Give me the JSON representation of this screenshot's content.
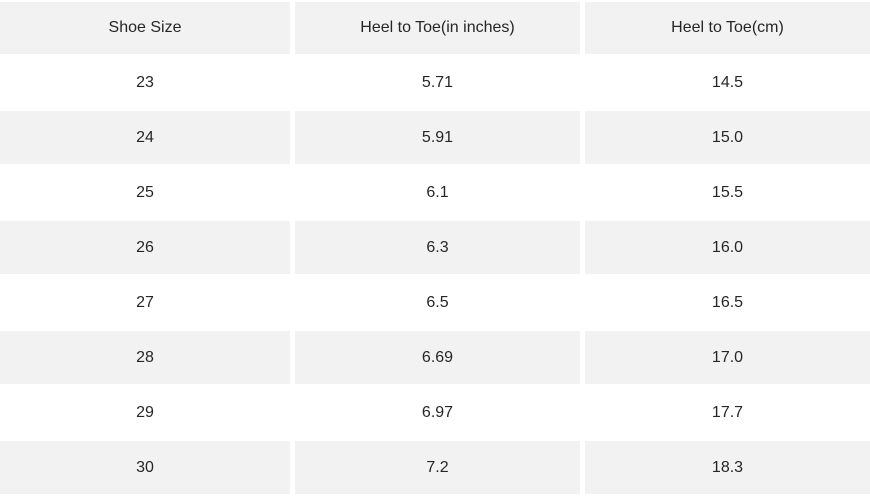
{
  "table": {
    "headers": [
      "Shoe Size",
      "Heel to Toe(in inches)",
      "Heel to Toe(cm)"
    ],
    "rows": [
      [
        "23",
        "5.71",
        "14.5"
      ],
      [
        "24",
        "5.91",
        "15.0"
      ],
      [
        "25",
        "6.1",
        "15.5"
      ],
      [
        "26",
        "6.3",
        "16.0"
      ],
      [
        "27",
        "6.5",
        "16.5"
      ],
      [
        "28",
        "6.69",
        "17.0"
      ],
      [
        "29",
        "6.97",
        "17.7"
      ],
      [
        "30",
        "7.2",
        "18.3"
      ]
    ]
  },
  "colors": {
    "header_background": "#f2f2f2",
    "row_shade": "#f2f2f2",
    "row_alt": "#ffffff",
    "text": "#262626",
    "separator": "#ffffff"
  },
  "chart_data": {
    "type": "table",
    "columns": [
      "Shoe Size",
      "Heel to Toe(in inches)",
      "Heel to Toe(cm)"
    ],
    "shoe_sizes": [
      23,
      24,
      25,
      26,
      27,
      28,
      29,
      30
    ],
    "heel_to_toe_inches": [
      5.71,
      5.91,
      6.1,
      6.3,
      6.5,
      6.69,
      6.97,
      7.2
    ],
    "heel_to_toe_cm": [
      14.5,
      15.0,
      15.5,
      16.0,
      16.5,
      17.0,
      17.7,
      18.3
    ],
    "layout": {
      "header_shaded": true,
      "zebra_striping": true,
      "first_body_row_background": "#ffffff",
      "cell_text_align": "center"
    }
  }
}
